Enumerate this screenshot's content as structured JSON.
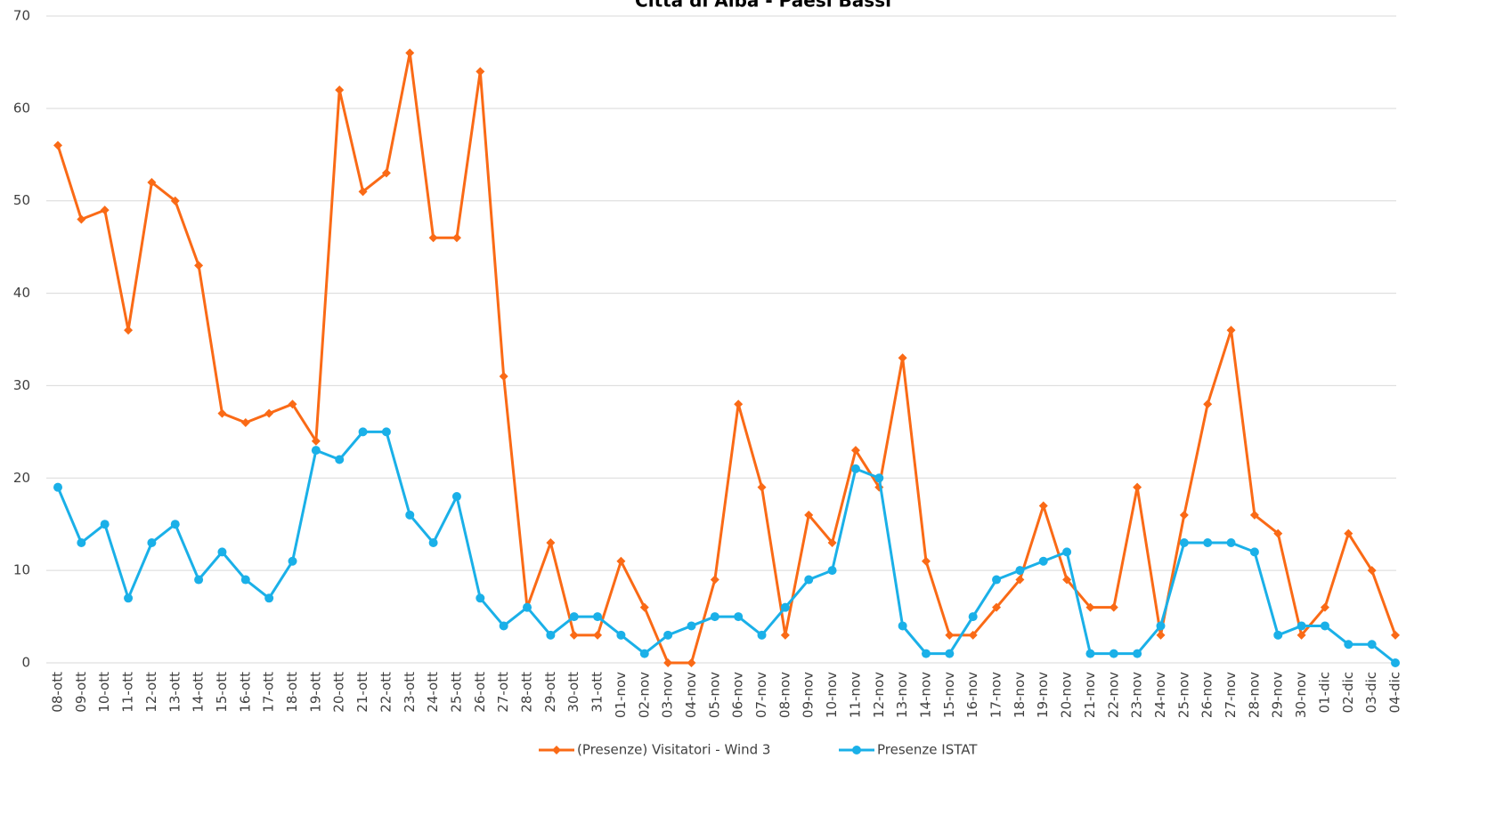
{
  "chart_data": {
    "type": "line",
    "title": "Città di Alba - Paesi Bassi",
    "categories": [
      "08-ott",
      "09-ott",
      "10-ott",
      "11-ott",
      "12-ott",
      "13-ott",
      "14-ott",
      "15-ott",
      "16-ott",
      "17-ott",
      "18-ott",
      "19-ott",
      "20-ott",
      "21-ott",
      "22-ott",
      "23-ott",
      "24-ott",
      "25-ott",
      "26-ott",
      "27-ott",
      "28-ott",
      "29-ott",
      "30-ott",
      "31-ott",
      "01-nov",
      "02-nov",
      "03-nov",
      "04-nov",
      "05-nov",
      "06-nov",
      "07-nov",
      "08-nov",
      "09-nov",
      "10-nov",
      "11-nov",
      "12-nov",
      "13-nov",
      "14-nov",
      "15-nov",
      "16-nov",
      "17-nov",
      "18-nov",
      "19-nov",
      "20-nov",
      "21-nov",
      "22-nov",
      "23-nov",
      "24-nov",
      "25-nov",
      "26-nov",
      "27-nov",
      "28-nov",
      "29-nov",
      "30-nov",
      "01-dic",
      "02-dic",
      "03-dic",
      "04-dic"
    ],
    "series": [
      {
        "name": "(Presenze) Visitatori - Wind 3",
        "color": "#fa6a16",
        "marker": "diamond",
        "values": [
          56,
          48,
          49,
          36,
          52,
          50,
          43,
          27,
          26,
          27,
          28,
          24,
          62,
          51,
          53,
          66,
          46,
          46,
          64,
          31,
          6,
          13,
          3,
          3,
          11,
          6,
          0,
          0,
          9,
          28,
          19,
          3,
          16,
          13,
          23,
          19,
          33,
          11,
          3,
          3,
          6,
          9,
          17,
          9,
          6,
          6,
          19,
          3,
          16,
          28,
          36,
          16,
          14,
          3,
          6,
          14,
          10,
          3
        ]
      },
      {
        "name": "Presenze ISTAT",
        "color": "#1ab0e8",
        "marker": "circle",
        "values": [
          19,
          13,
          15,
          7,
          13,
          15,
          9,
          12,
          9,
          7,
          11,
          23,
          22,
          25,
          25,
          16,
          13,
          18,
          7,
          4,
          6,
          3,
          5,
          5,
          3,
          1,
          3,
          4,
          5,
          5,
          3,
          6,
          9,
          10,
          21,
          20,
          4,
          1,
          1,
          5,
          9,
          10,
          11,
          12,
          1,
          1,
          1,
          4,
          13,
          13,
          13,
          12,
          3,
          4,
          4,
          2,
          2,
          0
        ]
      }
    ],
    "ylim": [
      0,
      70
    ],
    "yticks": [
      0,
      10,
      20,
      30,
      40,
      50,
      60,
      70
    ],
    "grid": true,
    "legend": "bottom"
  }
}
